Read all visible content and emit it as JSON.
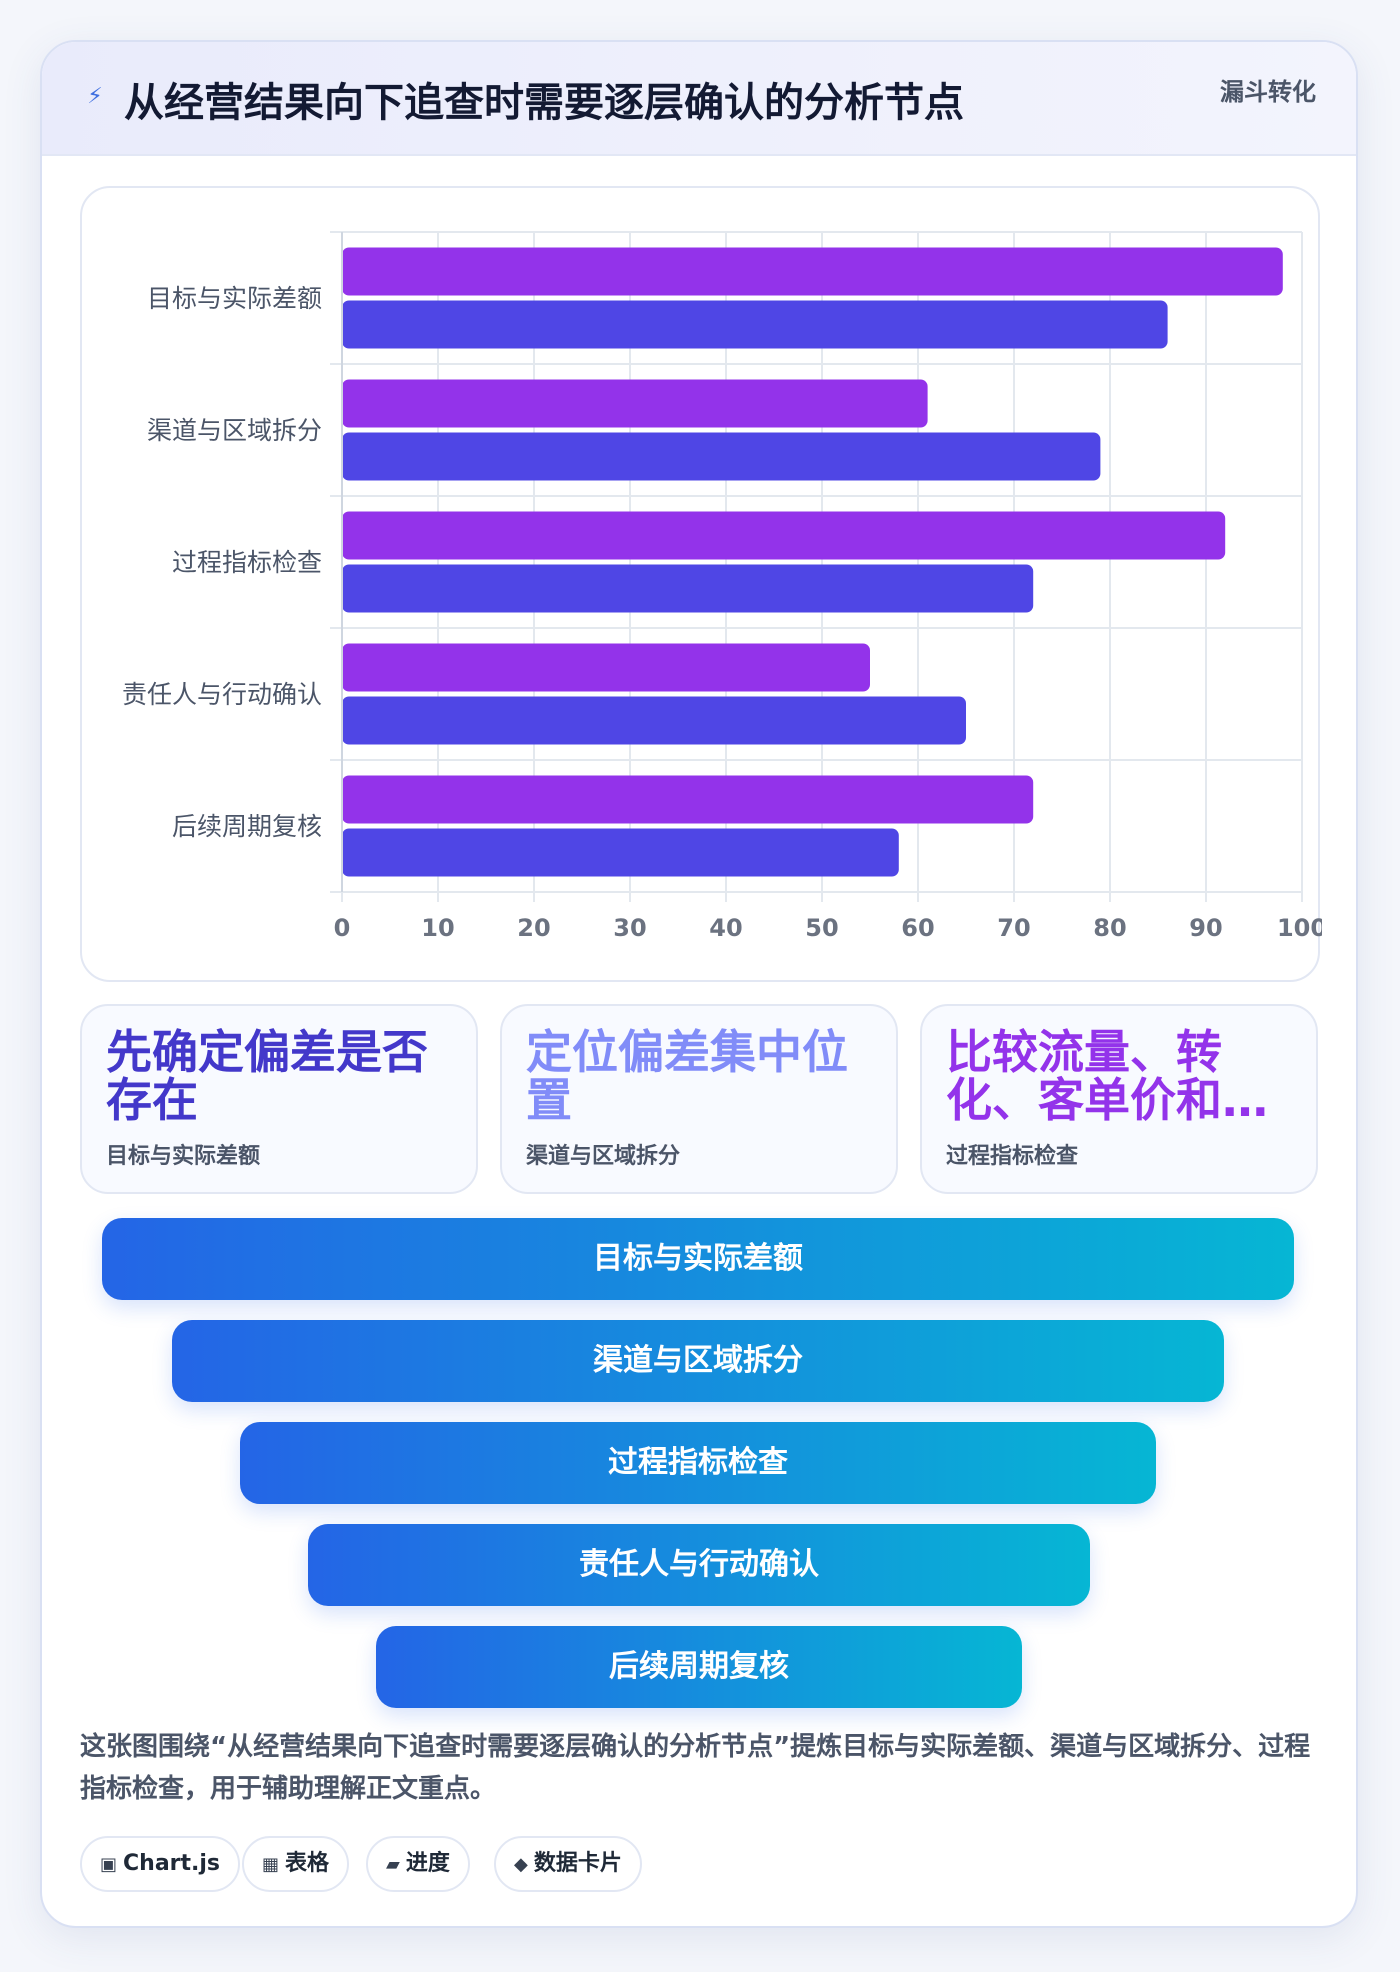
{
  "header": {
    "icon": "bolt-icon",
    "title": "从经营结果向下追查时需要逐层确认的分析节点",
    "tag": "漏斗转化"
  },
  "chart_data": {
    "type": "bar",
    "orientation": "horizontal",
    "categories": [
      "目标与实际差额",
      "渠道与区域拆分",
      "过程指标检查",
      "责任人与行动确认",
      "后续周期复核"
    ],
    "series": [
      {
        "values": [
          98,
          61,
          92,
          55,
          72
        ],
        "color": "#9333ea"
      },
      {
        "values": [
          86,
          79,
          72,
          65,
          58
        ],
        "color": "#4f46e5"
      }
    ],
    "xlim": [
      0,
      100
    ],
    "xticks": [
      0,
      10,
      20,
      30,
      40,
      50,
      60,
      70,
      80,
      90,
      100
    ],
    "grid": true,
    "legend": "none"
  },
  "stats": [
    {
      "title": "先确定偏差是否存在",
      "sub": "目标与实际差额",
      "color": "#4338ca"
    },
    {
      "title": "定位偏差集中位置",
      "sub": "渠道与区域拆分",
      "color": "#818cf8"
    },
    {
      "title": "比较流量、转化、客单价和…",
      "sub": "过程指标检查",
      "color": "#9333ea"
    }
  ],
  "funnel": [
    "目标与实际差额",
    "渠道与区域拆分",
    "过程指标检查",
    "责任人与行动确认",
    "后续周期复核"
  ],
  "caption": "这张图围绕“从经营结果向下追查时需要逐层确认的分析节点”提炼目标与实际差额、渠道与区域拆分、过程指标检查，用于辅助理解正文重点。",
  "chips": [
    {
      "icon": "chart-icon",
      "label": "Chart.js"
    },
    {
      "icon": "table-icon",
      "label": "表格"
    },
    {
      "icon": "progress-icon",
      "label": "进度"
    },
    {
      "icon": "diamond-icon",
      "label": "数据卡片"
    }
  ]
}
